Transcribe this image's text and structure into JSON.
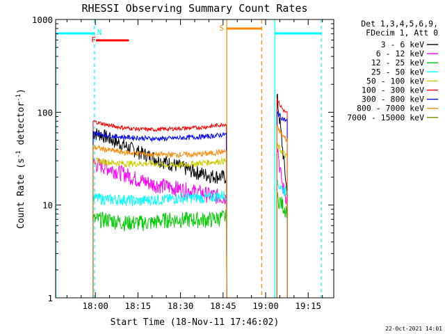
{
  "chart_data": {
    "type": "line",
    "title": "RHESSI Observing Summary Count Rates",
    "xlabel": "Start Time (18-Nov-11 17:46:02)",
    "ylabel": "Count Rate (s⁻¹ detector⁻¹)",
    "ylabel_main": "Count Rate (s",
    "ylabel_sup1": "-1",
    "ylabel_mid": " detector",
    "ylabel_sup2": "-1",
    "ylabel_end": ")",
    "yscale": "log",
    "xlim_min": [
      1066,
      1164
    ],
    "ylim": [
      1,
      1000
    ],
    "xticks": [
      {
        "min": 1080,
        "label": "18:00"
      },
      {
        "min": 1095,
        "label": "18:15"
      },
      {
        "min": 1110,
        "label": "18:30"
      },
      {
        "min": 1125,
        "label": "18:45"
      },
      {
        "min": 1140,
        "label": "19:00"
      },
      {
        "min": 1155,
        "label": "19:15"
      }
    ],
    "yticks": [
      {
        "value": 1,
        "label": "1"
      },
      {
        "value": 10,
        "label": "10"
      },
      {
        "value": 100,
        "label": "100"
      },
      {
        "value": 1000,
        "label": "1000"
      }
    ],
    "legend_header": [
      "Det 1,3,4,5,6,9,",
      "FDecim 1, Att 0"
    ],
    "legend_position": "right",
    "segments": [
      [
        1079.2,
        1126.3
      ],
      [
        1144.0,
        1147.6
      ]
    ],
    "series": [
      {
        "name": "3 - 6 keV",
        "color": "#000000",
        "values": [
          [
            1079.2,
            60
          ],
          [
            1082,
            58
          ],
          [
            1085,
            52
          ],
          [
            1090,
            44
          ],
          [
            1095,
            38
          ],
          [
            1100,
            33
          ],
          [
            1105,
            29
          ],
          [
            1110,
            26
          ],
          [
            1115,
            23
          ],
          [
            1120,
            21
          ],
          [
            1126.3,
            20
          ]
        ],
        "values2": [
          [
            1144,
            150
          ],
          [
            1145,
            80
          ],
          [
            1146,
            40
          ],
          [
            1147,
            20
          ],
          [
            1147.6,
            13
          ]
        ]
      },
      {
        "name": "6 - 12 keV",
        "color": "#ff00ff",
        "values": [
          [
            1079.2,
            28
          ],
          [
            1082,
            27
          ],
          [
            1085,
            25
          ],
          [
            1090,
            22
          ],
          [
            1095,
            19
          ],
          [
            1100,
            17
          ],
          [
            1105,
            16
          ],
          [
            1110,
            15
          ],
          [
            1115,
            14
          ],
          [
            1120,
            13
          ],
          [
            1126.3,
            12
          ]
        ],
        "values2": [
          [
            1144,
            50
          ],
          [
            1145,
            25
          ],
          [
            1146,
            16
          ],
          [
            1147,
            13
          ],
          [
            1147.6,
            11
          ]
        ]
      },
      {
        "name": "12 - 25 keV",
        "color": "#00cc00",
        "values": [
          [
            1079.2,
            7
          ],
          [
            1085,
            7
          ],
          [
            1090,
            6.5
          ],
          [
            1095,
            6.5
          ],
          [
            1100,
            6.5
          ],
          [
            1105,
            7
          ],
          [
            1110,
            7
          ],
          [
            1115,
            7
          ],
          [
            1120,
            7
          ],
          [
            1126.3,
            7.5
          ]
        ],
        "values2": [
          [
            1144,
            12
          ],
          [
            1145,
            11
          ],
          [
            1146,
            10
          ],
          [
            1147,
            9
          ],
          [
            1147.6,
            9
          ]
        ]
      },
      {
        "name": "25 - 50 keV",
        "color": "#00ffff",
        "values": [
          [
            1079.2,
            12
          ],
          [
            1085,
            11.5
          ],
          [
            1090,
            11.5
          ],
          [
            1095,
            11
          ],
          [
            1100,
            11.5
          ],
          [
            1105,
            11.5
          ],
          [
            1110,
            12
          ],
          [
            1115,
            12
          ],
          [
            1120,
            12
          ],
          [
            1126.3,
            13
          ]
        ],
        "values2": [
          [
            1144,
            17
          ],
          [
            1145,
            16
          ],
          [
            1146,
            15
          ],
          [
            1147,
            14
          ],
          [
            1147.6,
            14
          ]
        ]
      },
      {
        "name": "50 - 100 keV",
        "color": "#cccc00",
        "values": [
          [
            1079.2,
            30
          ],
          [
            1085,
            29
          ],
          [
            1090,
            28
          ],
          [
            1095,
            28
          ],
          [
            1100,
            28
          ],
          [
            1105,
            27
          ],
          [
            1110,
            27
          ],
          [
            1115,
            28
          ],
          [
            1120,
            29
          ],
          [
            1126.3,
            30
          ]
        ],
        "values2": [
          [
            1144,
            45
          ],
          [
            1145,
            40
          ],
          [
            1146,
            37
          ],
          [
            1147,
            34
          ],
          [
            1147.6,
            33
          ]
        ]
      },
      {
        "name": "100 - 300 keV",
        "color": "#ff0000",
        "values": [
          [
            1079.2,
            80
          ],
          [
            1085,
            72
          ],
          [
            1090,
            68
          ],
          [
            1095,
            66
          ],
          [
            1100,
            65
          ],
          [
            1105,
            66
          ],
          [
            1110,
            67
          ],
          [
            1115,
            68
          ],
          [
            1120,
            70
          ],
          [
            1126.3,
            75
          ]
        ],
        "values2": [
          [
            1144,
            140
          ],
          [
            1145,
            120
          ],
          [
            1146,
            108
          ],
          [
            1147,
            100
          ],
          [
            1147.6,
            98
          ]
        ]
      },
      {
        "name": "300 - 800 keV",
        "color": "#0000ff",
        "values": [
          [
            1079.2,
            60
          ],
          [
            1085,
            56
          ],
          [
            1090,
            54
          ],
          [
            1095,
            53
          ],
          [
            1100,
            52
          ],
          [
            1105,
            52
          ],
          [
            1110,
            53
          ],
          [
            1115,
            54
          ],
          [
            1120,
            55
          ],
          [
            1126.3,
            58
          ]
        ],
        "values2": [
          [
            1144,
            100
          ],
          [
            1145,
            92
          ],
          [
            1146,
            86
          ],
          [
            1147,
            82
          ],
          [
            1147.6,
            80
          ]
        ]
      },
      {
        "name": "800 - 7000 keV",
        "color": "#ff8800",
        "values": [
          [
            1079.2,
            42
          ],
          [
            1085,
            39
          ],
          [
            1090,
            37
          ],
          [
            1095,
            36
          ],
          [
            1100,
            35
          ],
          [
            1105,
            35
          ],
          [
            1110,
            35
          ],
          [
            1115,
            35
          ],
          [
            1120,
            36
          ],
          [
            1126.3,
            38
          ]
        ],
        "values2": [
          [
            1144,
            70
          ],
          [
            1145,
            62
          ],
          [
            1146,
            56
          ],
          [
            1147,
            52
          ],
          [
            1147.6,
            50
          ]
        ]
      },
      {
        "name": "7000 - 15000 keV",
        "color": "#808000",
        "values": [],
        "values2": []
      }
    ],
    "annotations": {
      "N": {
        "label": "N",
        "color": "#00ffff"
      },
      "F": {
        "label": "F",
        "color": "#ff0000"
      },
      "S": {
        "label": "S",
        "color": "#ff8800"
      }
    },
    "footer_date": "22-Oct-2021 14:01"
  }
}
